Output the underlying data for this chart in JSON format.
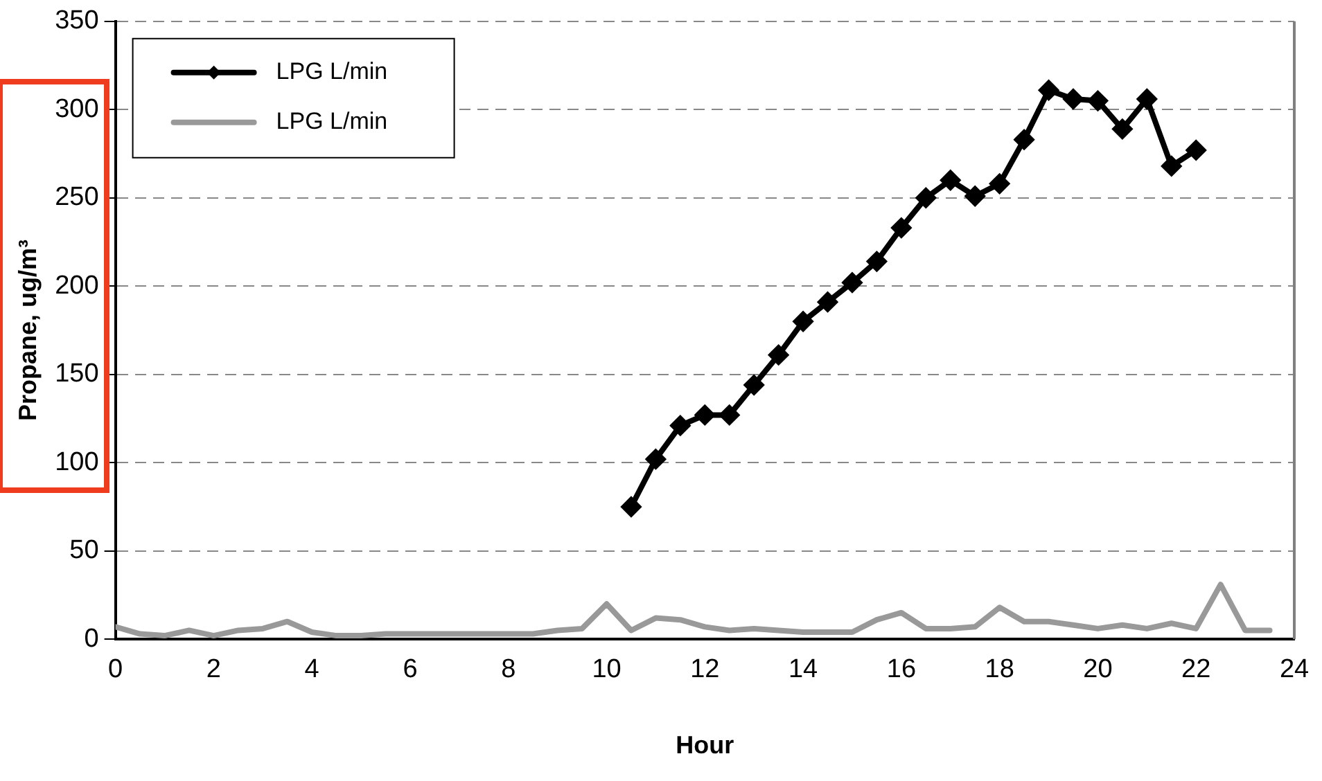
{
  "chart_data": {
    "type": "line",
    "xlabel": "Hour",
    "ylabel": "Propane, ug/m³",
    "xlim": [
      0,
      24
    ],
    "xticks": [
      0,
      2,
      4,
      6,
      8,
      10,
      12,
      14,
      16,
      18,
      20,
      22,
      24
    ],
    "ylim": [
      0,
      350
    ],
    "yticks": [
      0,
      50,
      100,
      150,
      200,
      250,
      300,
      350
    ],
    "grid": "y",
    "legend": "top left",
    "line_style": "solid",
    "series": [
      {
        "name": "LPG L/min",
        "color": "#000000",
        "marker": "diamond",
        "x": [
          10.5,
          11,
          11.5,
          12,
          12.5,
          13,
          13.5,
          14,
          14.5,
          15,
          15.5,
          16,
          16.5,
          17,
          17.5,
          18,
          18.5,
          19,
          19.5,
          20,
          20.5,
          21,
          21.5,
          22
        ],
        "values": [
          75,
          102,
          121,
          127,
          127,
          144,
          161,
          180,
          191,
          202,
          214,
          233,
          250,
          260,
          251,
          258,
          283,
          311,
          306,
          305,
          289,
          306,
          268,
          277
        ]
      },
      {
        "name": "LPG L/min",
        "color": "#999999",
        "marker": "none",
        "x": [
          0,
          0.5,
          1,
          1.5,
          2,
          2.5,
          3,
          3.5,
          4,
          4.5,
          5,
          5.5,
          6,
          6.5,
          7,
          7.5,
          8,
          8.5,
          9,
          9.5,
          10,
          10.5,
          11,
          11.5,
          12,
          12.5,
          13,
          13.5,
          14,
          14.5,
          15,
          15.5,
          16,
          16.5,
          17,
          17.5,
          18,
          18.5,
          19,
          19.5,
          20,
          20.5,
          21,
          21.5,
          22,
          22.5,
          23,
          23.5
        ],
        "values": [
          7,
          3,
          2,
          5,
          2,
          5,
          6,
          10,
          4,
          2,
          2,
          3,
          3,
          3,
          3,
          3,
          3,
          3,
          5,
          6,
          20,
          5,
          12,
          11,
          7,
          5,
          6,
          5,
          4,
          4,
          4,
          11,
          15,
          6,
          6,
          7,
          18,
          10,
          10,
          8,
          6,
          8,
          6,
          9,
          6,
          31,
          5,
          5
        ]
      }
    ]
  }
}
